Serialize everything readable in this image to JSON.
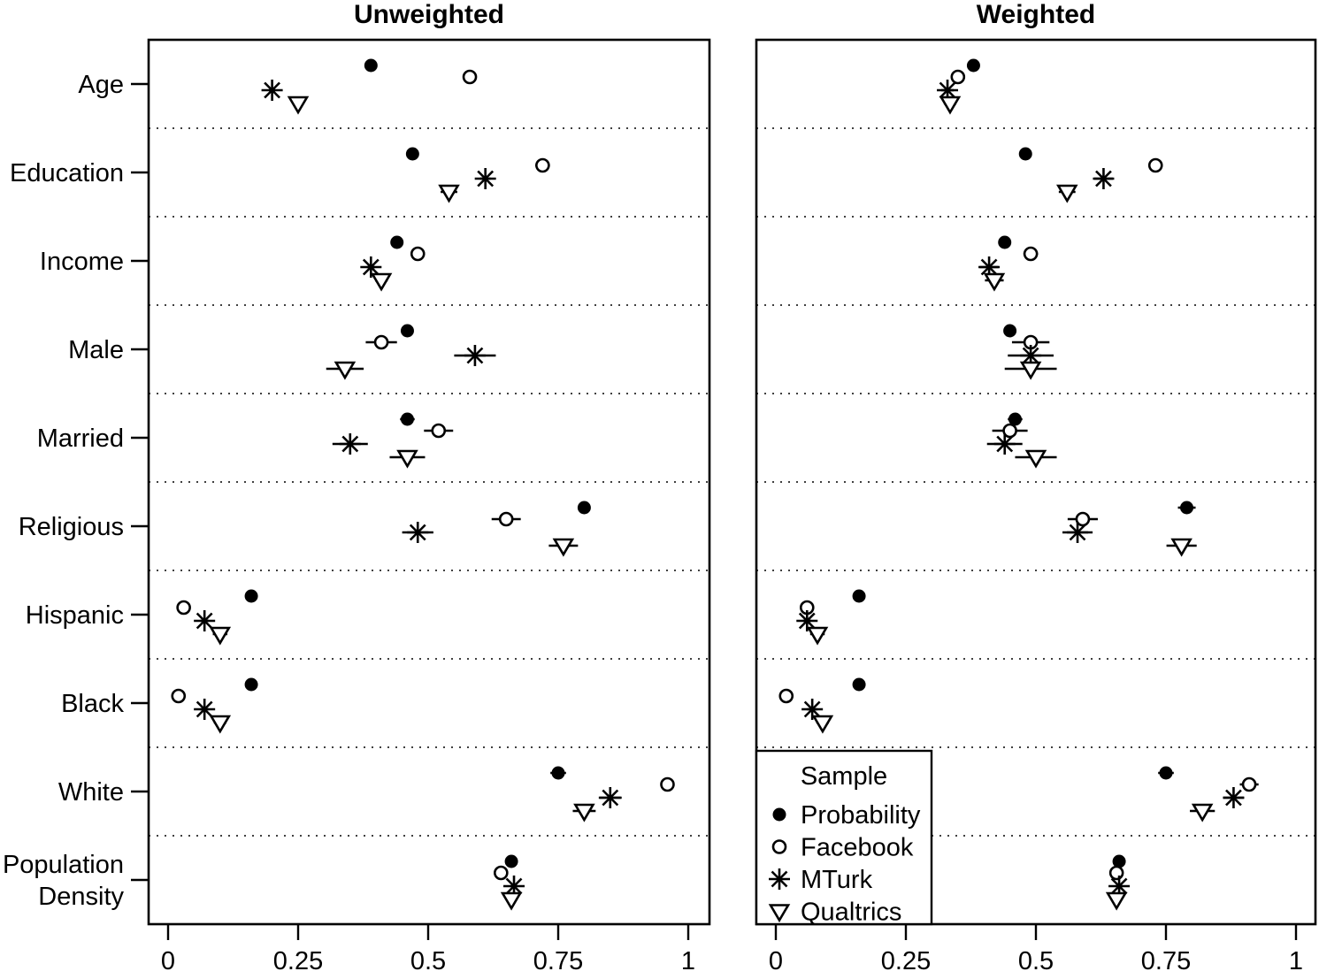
{
  "figure": {
    "background_color": "#ffffff",
    "foreground_color": "#000000"
  },
  "chart_data": {
    "type": "scatter",
    "layout": "two-panel horizontal dot plot with error bars, shared y categories",
    "categories": [
      "Age",
      "Education",
      "Income",
      "Male",
      "Married",
      "Religious",
      "Hispanic",
      "Black",
      "White",
      "Population Density"
    ],
    "xlim": [
      0,
      1
    ],
    "xticks": [
      0,
      0.25,
      0.5,
      0.75,
      1
    ],
    "xtick_labels": [
      "0",
      "0.25",
      "0.5",
      "0.75",
      "1"
    ],
    "grid": "dotted horizontal separator lines between categories",
    "panels": [
      {
        "title": "Unweighted",
        "series": [
          {
            "name": "Probability",
            "marker": "filled-circle",
            "values": [
              0.39,
              0.47,
              0.44,
              0.46,
              0.46,
              0.8,
              0.16,
              0.16,
              0.75,
              0.66
            ],
            "errors": [
              0.006,
              0.01,
              0.008,
              0.012,
              0.014,
              0.012,
              0.008,
              0.01,
              0.015,
              0.006
            ]
          },
          {
            "name": "Facebook",
            "marker": "open-circle",
            "values": [
              0.58,
              0.72,
              0.48,
              0.41,
              0.52,
              0.65,
              0.03,
              0.02,
              0.96,
              0.64
            ],
            "errors": [
              0.006,
              0.014,
              0.014,
              0.03,
              0.028,
              0.028,
              0.006,
              0.006,
              0.008,
              0.006
            ]
          },
          {
            "name": "MTurk",
            "marker": "asterisk",
            "values": [
              0.2,
              0.61,
              0.39,
              0.59,
              0.35,
              0.48,
              0.07,
              0.07,
              0.85,
              0.665
            ],
            "errors": [
              0.006,
              0.01,
              0.008,
              0.04,
              0.034,
              0.03,
              0.008,
              0.008,
              0.022,
              0.006
            ]
          },
          {
            "name": "Qualtrics",
            "marker": "triangle-down",
            "values": [
              0.25,
              0.54,
              0.41,
              0.34,
              0.46,
              0.76,
              0.1,
              0.1,
              0.8,
              0.66
            ],
            "errors": [
              0.006,
              0.016,
              0.012,
              0.036,
              0.034,
              0.028,
              0.014,
              0.012,
              0.022,
              0.006
            ]
          }
        ]
      },
      {
        "title": "Weighted",
        "series": [
          {
            "name": "Probability",
            "marker": "filled-circle",
            "values": [
              0.38,
              0.48,
              0.44,
              0.45,
              0.46,
              0.79,
              0.16,
              0.16,
              0.75,
              0.66
            ],
            "errors": [
              0.006,
              0.01,
              0.008,
              0.012,
              0.014,
              0.017,
              0.008,
              0.01,
              0.015,
              0.006
            ]
          },
          {
            "name": "Facebook",
            "marker": "open-circle",
            "values": [
              0.35,
              0.73,
              0.49,
              0.49,
              0.45,
              0.59,
              0.06,
              0.02,
              0.91,
              0.655
            ],
            "errors": [
              0.01,
              0.014,
              0.014,
              0.036,
              0.034,
              0.029,
              0.012,
              0.006,
              0.018,
              0.006
            ]
          },
          {
            "name": "MTurk",
            "marker": "asterisk",
            "values": [
              0.33,
              0.63,
              0.41,
              0.49,
              0.44,
              0.58,
              0.06,
              0.07,
              0.88,
              0.66
            ],
            "errors": [
              0.012,
              0.018,
              0.018,
              0.044,
              0.034,
              0.029,
              0.008,
              0.01,
              0.02,
              0.006
            ]
          },
          {
            "name": "Qualtrics",
            "marker": "triangle-down",
            "values": [
              0.335,
              0.56,
              0.42,
              0.49,
              0.5,
              0.78,
              0.08,
              0.09,
              0.82,
              0.655
            ],
            "errors": [
              0.012,
              0.016,
              0.018,
              0.05,
              0.04,
              0.029,
              0.014,
              0.012,
              0.024,
              0.006
            ]
          }
        ]
      }
    ],
    "legend": {
      "title": "Sample",
      "position": "bottom-left of Weighted panel",
      "entries": [
        {
          "label": "Probability",
          "marker": "filled-circle"
        },
        {
          "label": "Facebook",
          "marker": "open-circle"
        },
        {
          "label": "MTurk",
          "marker": "asterisk"
        },
        {
          "label": "Qualtrics",
          "marker": "triangle-down"
        }
      ]
    }
  }
}
